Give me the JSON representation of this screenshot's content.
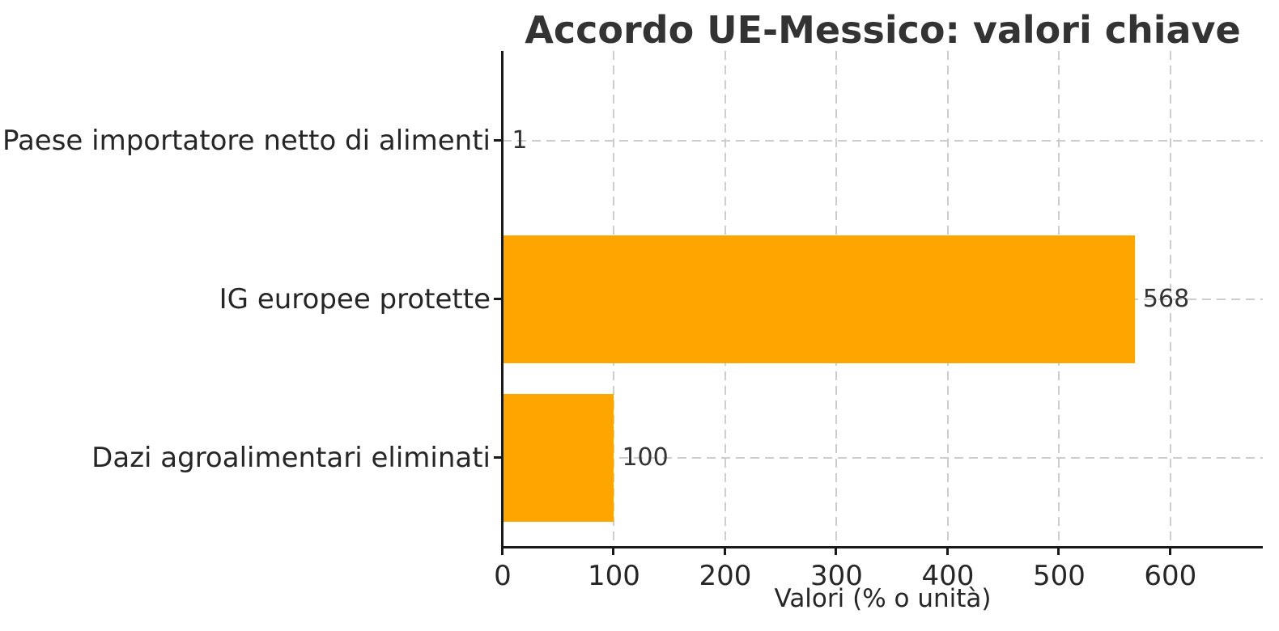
{
  "chart_data": {
    "type": "bar",
    "orientation": "horizontal",
    "title": "Accordo UE-Messico: valori chiave",
    "xlabel": "Valori (% o unità)",
    "categories": [
      "Paese importatore netto di alimenti",
      "IG europee protette",
      "Dazi agroalimentari eliminati"
    ],
    "values": [
      1,
      568,
      100
    ],
    "value_labels": [
      "1",
      "568",
      "100"
    ],
    "xticks": [
      0,
      100,
      200,
      300,
      400,
      500,
      600
    ],
    "xlim": [
      0,
      683
    ],
    "bar_color": "#FFA500",
    "grid": {
      "axis": "both",
      "style": "dashed",
      "color": "#cccccc"
    },
    "axis_color": "#1a1a1a",
    "text_color": "#262626",
    "legend": null
  }
}
